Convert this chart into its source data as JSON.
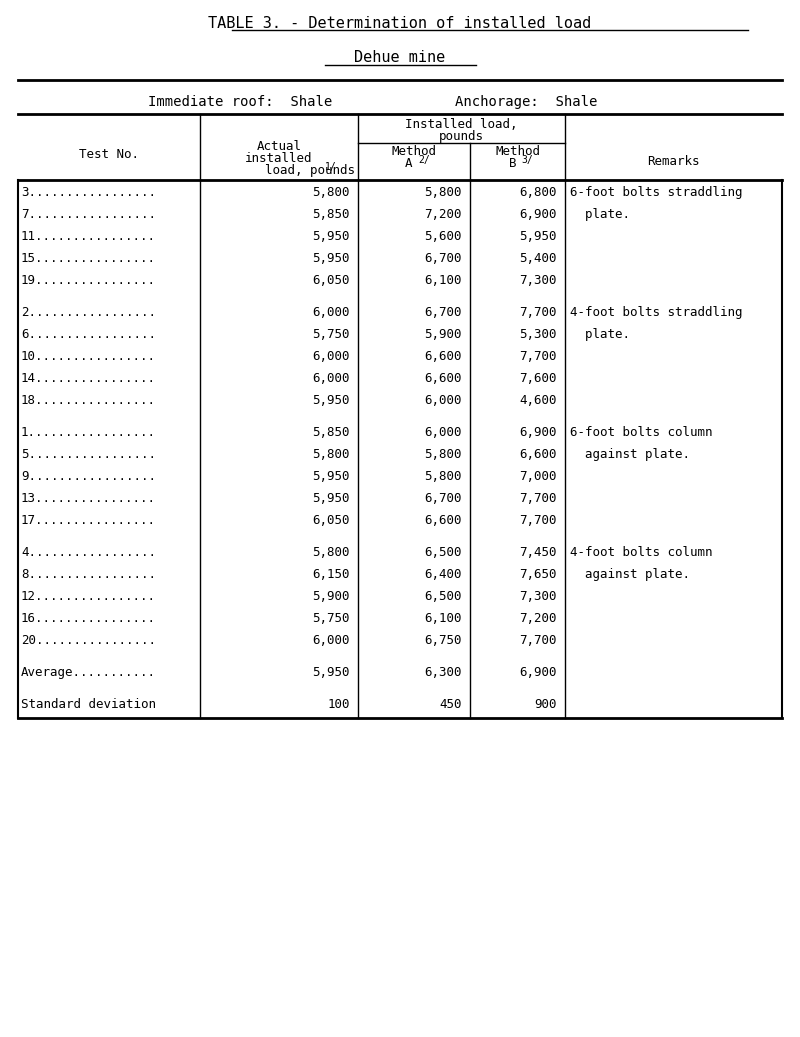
{
  "title": "TABLE 3. - Determination of installed load",
  "subtitle": "Dehue mine",
  "immediate_roof": "Immediate roof:  Shale",
  "anchorage": "Anchorage:  Shale",
  "groups": [
    {
      "rows": [
        {
          "test": "3.................",
          "actual": "5,800",
          "methodA": "5,800",
          "methodB": "6,800",
          "remark1": "6-foot bolts straddling",
          "remark2": ""
        },
        {
          "test": "7.................",
          "actual": "5,850",
          "methodA": "7,200",
          "methodB": "6,900",
          "remark1": "  plate.",
          "remark2": ""
        },
        {
          "test": "11................",
          "actual": "5,950",
          "methodA": "5,600",
          "methodB": "5,950",
          "remark1": "",
          "remark2": ""
        },
        {
          "test": "15................",
          "actual": "5,950",
          "methodA": "6,700",
          "methodB": "5,400",
          "remark1": "",
          "remark2": ""
        },
        {
          "test": "19................",
          "actual": "6,050",
          "methodA": "6,100",
          "methodB": "7,300",
          "remark1": "",
          "remark2": ""
        }
      ]
    },
    {
      "rows": [
        {
          "test": "2.................",
          "actual": "6,000",
          "methodA": "6,700",
          "methodB": "7,700",
          "remark1": "4-foot bolts straddling",
          "remark2": ""
        },
        {
          "test": "6.................",
          "actual": "5,750",
          "methodA": "5,900",
          "methodB": "5,300",
          "remark1": "  plate.",
          "remark2": ""
        },
        {
          "test": "10................",
          "actual": "6,000",
          "methodA": "6,600",
          "methodB": "7,700",
          "remark1": "",
          "remark2": ""
        },
        {
          "test": "14................",
          "actual": "6,000",
          "methodA": "6,600",
          "methodB": "7,600",
          "remark1": "",
          "remark2": ""
        },
        {
          "test": "18................",
          "actual": "5,950",
          "methodA": "6,000",
          "methodB": "4,600",
          "remark1": "",
          "remark2": ""
        }
      ]
    },
    {
      "rows": [
        {
          "test": "1.................",
          "actual": "5,850",
          "methodA": "6,000",
          "methodB": "6,900",
          "remark1": "6-foot bolts column",
          "remark2": ""
        },
        {
          "test": "5.................",
          "actual": "5,800",
          "methodA": "5,800",
          "methodB": "6,600",
          "remark1": "  against plate.",
          "remark2": ""
        },
        {
          "test": "9.................",
          "actual": "5,950",
          "methodA": "5,800",
          "methodB": "7,000",
          "remark1": "",
          "remark2": ""
        },
        {
          "test": "13................",
          "actual": "5,950",
          "methodA": "6,700",
          "methodB": "7,700",
          "remark1": "",
          "remark2": ""
        },
        {
          "test": "17................",
          "actual": "6,050",
          "methodA": "6,600",
          "methodB": "7,700",
          "remark1": "",
          "remark2": ""
        }
      ]
    },
    {
      "rows": [
        {
          "test": "4.................",
          "actual": "5,800",
          "methodA": "6,500",
          "methodB": "7,450",
          "remark1": "4-foot bolts column",
          "remark2": ""
        },
        {
          "test": "8.................",
          "actual": "6,150",
          "methodA": "6,400",
          "methodB": "7,650",
          "remark1": "  against plate.",
          "remark2": ""
        },
        {
          "test": "12................",
          "actual": "5,900",
          "methodA": "6,500",
          "methodB": "7,300",
          "remark1": "",
          "remark2": ""
        },
        {
          "test": "16................",
          "actual": "5,750",
          "methodA": "6,100",
          "methodB": "7,200",
          "remark1": "",
          "remark2": ""
        },
        {
          "test": "20................",
          "actual": "6,000",
          "methodA": "6,750",
          "methodB": "7,700",
          "remark1": "",
          "remark2": ""
        }
      ]
    }
  ],
  "average_row": {
    "test": "Average...........",
    "actual": "5,950",
    "methodA": "6,300",
    "methodB": "6,900"
  },
  "stddev_row": {
    "test": "Standard deviation",
    "actual": "100",
    "methodA": "450",
    "methodB": "900"
  },
  "bg_color": "#ffffff",
  "font_family": "DejaVu Sans Mono",
  "font_size": 9.0,
  "title_fontsize": 11.0,
  "subtitle_fontsize": 11.0,
  "info_fontsize": 10.0
}
